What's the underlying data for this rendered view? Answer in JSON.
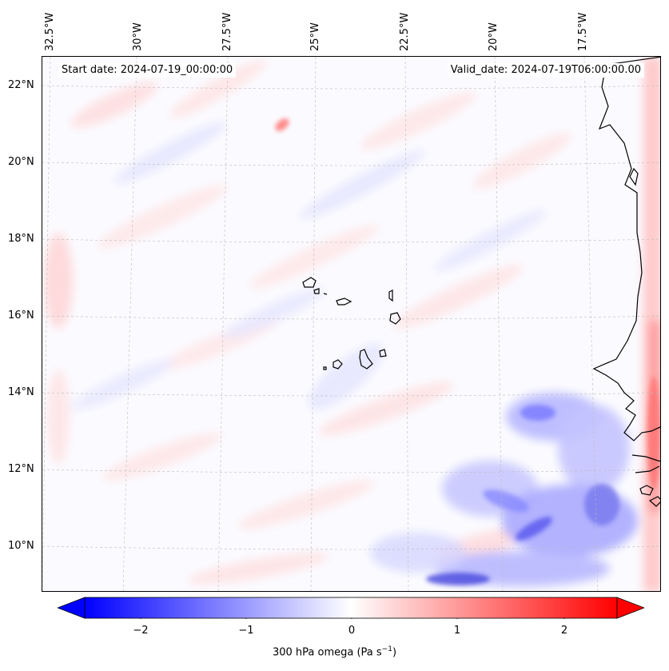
{
  "annotations": {
    "start_date": "Start date: 2024-07-19_00:00:00",
    "valid_date": "Valid_date: 2024-07-19T06:00:00.00"
  },
  "longitude_labels": [
    "32.5°W",
    "30°W",
    "27.5°W",
    "25°W",
    "22.5°W",
    "20°W",
    "17.5°W"
  ],
  "latitude_labels": [
    "22°N",
    "20°N",
    "18°N",
    "16°N",
    "14°N",
    "12°N",
    "10°N"
  ],
  "colorbar": {
    "ticks": [
      "−2",
      "−1",
      "0",
      "1",
      "2"
    ],
    "label_text": "300 hPa omega (Pa s",
    "label_exp": "−1",
    "label_close": ")",
    "colors": {
      "negative": "#0000ff",
      "zero": "#ffffff",
      "positive": "#ff0000"
    }
  },
  "map": {
    "coastline_color": "#000000",
    "gridline_color": "#bbbbbb",
    "background_tint": "#fbfbff"
  }
}
